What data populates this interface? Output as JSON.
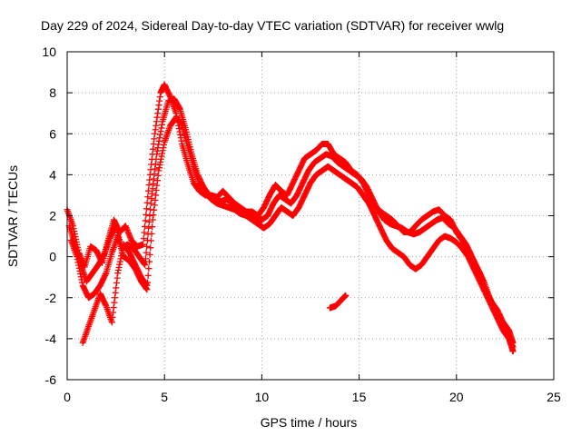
{
  "chart_data": {
    "type": "scatter",
    "title": "Day 229 of 2024, Sidereal Day-to-day VTEC variation (SDTVAR) for receiver wwlg",
    "xlabel": "GPS time / hours",
    "ylabel": "SDTVAR / TECUs",
    "xlim": [
      0,
      25
    ],
    "ylim": [
      -6,
      10
    ],
    "xticks": [
      0,
      5,
      10,
      15,
      20,
      25
    ],
    "yticks": [
      -6,
      -4,
      -2,
      0,
      2,
      4,
      6,
      8,
      10
    ],
    "grid": true,
    "marker": "+",
    "color": "#ff0000",
    "series": [
      {
        "name": "track-1",
        "x": [
          0.0,
          0.3,
          0.6,
          0.9,
          1.2,
          1.5,
          1.8,
          2.1,
          2.4,
          2.7,
          3.0,
          3.3,
          3.6,
          3.9,
          4.2,
          4.5,
          4.8,
          5.0,
          5.3,
          5.6,
          5.9,
          6.2,
          6.5,
          6.8,
          7.1,
          7.4,
          7.7,
          8.0,
          8.3,
          8.6,
          8.9,
          9.2,
          9.5,
          9.8,
          10.1,
          10.4,
          10.7,
          11.0,
          11.3,
          11.6,
          11.9,
          12.2,
          12.5,
          12.8,
          13.1,
          13.4,
          13.7,
          14.0,
          14.3,
          14.6,
          14.9,
          15.2,
          15.5,
          15.8,
          16.1,
          16.4,
          16.7,
          17.0,
          17.3,
          17.6,
          17.9,
          18.2,
          18.5,
          18.8,
          19.1,
          19.4,
          19.7,
          20.0,
          20.3,
          20.6,
          20.9,
          21.2,
          21.5,
          21.8,
          22.1,
          22.4,
          22.7,
          22.9
        ],
        "y": [
          2.3,
          1.5,
          0.2,
          -0.5,
          0.5,
          0.3,
          -0.3,
          0.8,
          1.8,
          1.2,
          1.5,
          0.8,
          0.5,
          0.6,
          3.5,
          6.0,
          8.0,
          8.4,
          7.8,
          7.0,
          5.5,
          4.5,
          3.6,
          3.2,
          3.0,
          3.0,
          2.9,
          3.2,
          2.9,
          2.6,
          2.4,
          2.2,
          2.2,
          2.0,
          2.4,
          3.0,
          3.5,
          3.2,
          3.0,
          3.6,
          4.2,
          4.8,
          5.0,
          5.2,
          5.5,
          5.5,
          5.0,
          4.8,
          4.6,
          4.2,
          4.0,
          3.6,
          3.0,
          2.5,
          2.2,
          2.0,
          1.8,
          1.5,
          1.2,
          1.2,
          1.5,
          1.8,
          2.0,
          2.2,
          2.3,
          2.0,
          1.8,
          1.2,
          0.8,
          0.3,
          -0.3,
          -0.8,
          -1.6,
          -2.2,
          -2.6,
          -3.2,
          -3.6,
          -4.2
        ]
      },
      {
        "name": "track-2",
        "x": [
          0.1,
          0.4,
          0.7,
          1.0,
          1.3,
          1.6,
          1.9,
          2.2,
          2.5,
          2.8,
          3.1,
          3.4,
          3.7,
          4.0,
          4.3,
          4.6,
          4.9,
          5.2,
          5.5,
          5.8,
          6.1,
          6.4,
          6.7,
          7.0,
          7.3,
          7.6,
          7.9,
          8.2,
          8.5,
          8.8,
          9.1,
          9.4,
          9.7,
          10.0,
          10.3,
          10.6,
          10.9,
          11.2,
          11.5,
          11.8,
          12.1,
          12.4,
          12.7,
          13.0,
          13.3,
          13.6,
          13.9,
          14.2,
          14.5,
          14.8,
          15.1,
          15.4,
          15.7,
          16.0,
          16.3,
          16.6,
          16.9,
          17.2,
          17.5,
          17.8,
          18.1,
          18.4,
          18.7,
          19.0,
          19.3,
          19.6,
          19.9,
          20.2,
          20.5,
          20.8,
          21.1,
          21.4,
          21.7,
          22.0,
          22.3,
          22.6,
          22.9
        ],
        "y": [
          1.5,
          0.6,
          -0.4,
          -1.2,
          -0.8,
          -0.4,
          0.1,
          0.9,
          1.5,
          0.4,
          0.6,
          0.4,
          0.0,
          -0.4,
          2.6,
          5.0,
          6.6,
          7.6,
          7.7,
          7.2,
          6.2,
          5.0,
          4.0,
          3.4,
          3.0,
          2.8,
          2.7,
          2.8,
          2.6,
          2.3,
          2.1,
          2.0,
          1.9,
          1.8,
          2.0,
          2.6,
          3.0,
          2.8,
          2.6,
          3.0,
          3.6,
          4.2,
          4.6,
          4.8,
          5.0,
          4.9,
          4.6,
          4.4,
          4.2,
          4.0,
          3.8,
          3.4,
          2.8,
          2.2,
          1.8,
          1.6,
          1.5,
          1.4,
          1.2,
          1.1,
          1.2,
          1.4,
          1.6,
          1.8,
          1.9,
          1.6,
          1.4,
          1.0,
          0.6,
          0.0,
          -0.6,
          -1.2,
          -2.0,
          -2.6,
          -3.2,
          -3.8,
          -4.4
        ]
      },
      {
        "name": "track-3",
        "x": [
          0.2,
          0.5,
          0.8,
          1.1,
          1.4,
          1.7,
          2.0,
          2.3,
          2.6,
          2.9,
          3.2,
          3.5,
          3.8,
          4.1,
          4.4,
          4.7,
          5.0,
          5.3,
          5.6,
          5.9,
          6.2,
          6.5,
          6.8,
          7.1,
          7.4,
          7.7,
          8.0,
          8.3,
          8.6,
          8.9,
          9.2,
          9.5,
          9.8,
          10.1,
          10.4,
          10.7,
          11.0,
          11.3,
          11.6,
          11.9,
          12.2,
          12.5,
          12.8,
          13.1,
          13.4,
          13.7,
          14.0,
          14.3,
          14.6,
          14.9,
          15.2,
          15.5,
          15.8,
          16.1,
          16.4,
          16.7,
          17.0,
          17.3,
          17.6,
          17.9,
          18.2,
          18.5,
          18.8,
          19.1,
          19.4,
          19.7,
          20.0,
          20.3,
          20.6,
          20.9,
          21.2,
          21.5,
          21.8,
          22.1,
          22.4,
          22.7,
          22.9
        ],
        "y": [
          0.8,
          0.0,
          -1.4,
          -2.0,
          -1.8,
          -1.4,
          -0.8,
          0.2,
          1.0,
          0.0,
          -0.2,
          -0.6,
          -1.2,
          -1.6,
          1.8,
          4.2,
          5.6,
          6.4,
          6.8,
          6.4,
          5.4,
          4.4,
          3.6,
          3.1,
          2.8,
          2.6,
          2.5,
          2.4,
          2.3,
          2.1,
          2.0,
          1.8,
          1.6,
          1.4,
          1.6,
          2.0,
          2.4,
          2.2,
          2.0,
          2.4,
          3.0,
          3.6,
          4.0,
          4.2,
          4.4,
          4.2,
          4.0,
          3.8,
          3.6,
          3.4,
          3.0,
          2.6,
          2.0,
          1.4,
          0.8,
          0.4,
          0.2,
          0.0,
          -0.4,
          -0.6,
          -0.4,
          0.0,
          0.4,
          0.8,
          1.0,
          0.9,
          0.7,
          0.4,
          0.0,
          -0.6,
          -1.2,
          -1.8,
          -2.4,
          -3.0,
          -3.6,
          -4.0,
          -4.6
        ]
      },
      {
        "name": "track-4",
        "x": [
          0.8,
          1.1,
          1.4,
          1.7,
          2.0,
          2.3,
          2.6,
          2.9,
          3.2,
          3.5,
          3.8,
          4.1,
          13.5,
          13.8,
          14.1,
          14.3
        ],
        "y": [
          -4.2,
          -3.4,
          -2.6,
          -1.8,
          -2.4,
          -3.2,
          -0.8,
          0.6,
          0.2,
          -0.4,
          -1.0,
          -1.4,
          -2.5,
          -2.4,
          -2.1,
          -1.9
        ]
      }
    ]
  }
}
